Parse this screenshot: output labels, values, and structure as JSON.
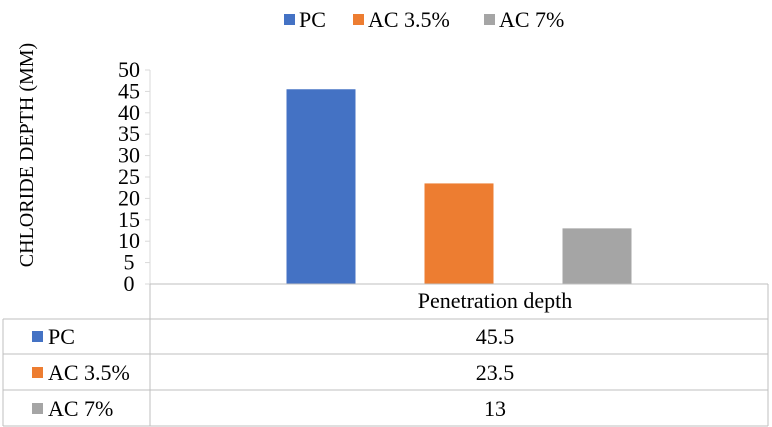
{
  "chart_data": {
    "type": "bar",
    "title": "",
    "xlabel": "",
    "ylabel": "CHLORIDE DEPTH (MM)",
    "categories": [
      "Penetration depth"
    ],
    "series": [
      {
        "name": "PC",
        "values": [
          45.5
        ],
        "color": "#4472C4"
      },
      {
        "name": "AC 3.5%",
        "values": [
          23.5
        ],
        "color": "#ED7D31"
      },
      {
        "name": "AC 7%",
        "values": [
          13
        ],
        "color": "#A5A5A5"
      }
    ],
    "ylim": [
      0,
      50
    ],
    "yticks": [
      "0",
      "5",
      "10",
      "15",
      "20",
      "25",
      "30",
      "35",
      "40",
      "45",
      "50"
    ],
    "grid": false,
    "legend": "top",
    "data_table": true,
    "table_values": [
      "45.5",
      "23.5",
      "13"
    ]
  }
}
